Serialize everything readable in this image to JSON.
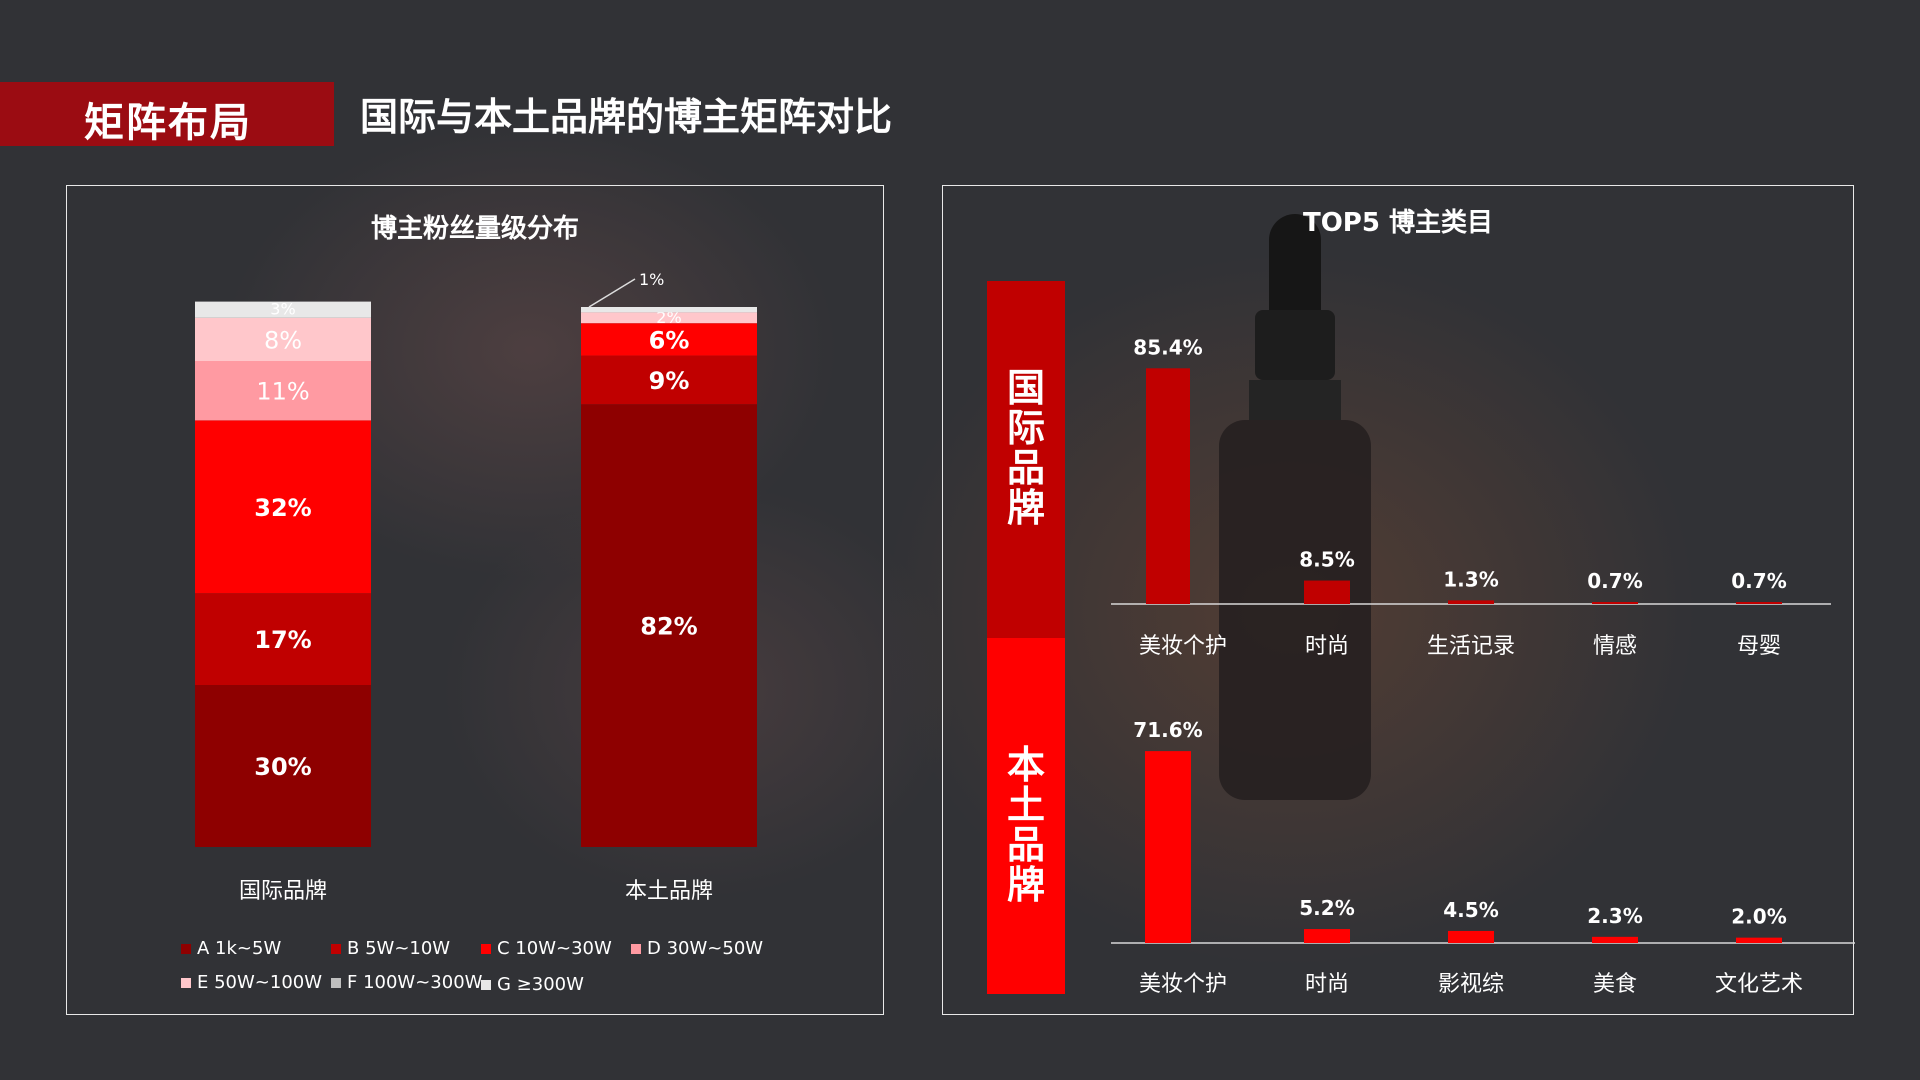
{
  "header": {
    "badge_label": "矩阵布局",
    "title": "国际与本土品牌的博主矩阵对比"
  },
  "left_panel": {
    "title": "博主粉丝量级分布"
  },
  "right_panel": {
    "title": "TOP5 博主类目"
  },
  "colors": {
    "A": "#8e0000",
    "B": "#c00000",
    "C": "#ff0000",
    "D": "#ff9aa2",
    "E": "#ffc7cb",
    "F": "#bfbfbf",
    "G": "#e8e8e8",
    "intl_band": "#c00000",
    "local_band": "#ff0000"
  },
  "chart_data": [
    {
      "type": "bar",
      "stacked": true,
      "title": "博主粉丝量级分布",
      "categories": [
        "国际品牌",
        "本土品牌"
      ],
      "ylim": [
        0,
        100
      ],
      "series": [
        {
          "name": "A 1k~5W",
          "key": "A",
          "values": [
            30,
            82
          ],
          "labels": [
            "30%",
            "82%"
          ]
        },
        {
          "name": "B 5W~10W",
          "key": "B",
          "values": [
            17,
            9
          ],
          "labels": [
            "17%",
            "9%"
          ]
        },
        {
          "name": "C 10W~30W",
          "key": "C",
          "values": [
            32,
            6
          ],
          "labels": [
            "32%",
            "6%"
          ]
        },
        {
          "name": "D 30W~50W",
          "key": "D",
          "values": [
            11,
            0
          ],
          "labels": [
            "11%",
            ""
          ]
        },
        {
          "name": "E 50W~100W",
          "key": "E",
          "values": [
            8,
            2
          ],
          "labels": [
            "8%",
            "2%"
          ]
        },
        {
          "name": "F 100W~300W",
          "key": "F",
          "values": [
            0,
            0
          ],
          "labels": [
            "",
            ""
          ]
        },
        {
          "name": "G ≥300W",
          "key": "G",
          "values": [
            3,
            1
          ],
          "labels": [
            "3%",
            "1%"
          ]
        }
      ],
      "legend_position": "bottom"
    },
    {
      "type": "bar",
      "group_label": "国际品牌",
      "title": "TOP5 博主类目",
      "categories": [
        "美妆个护",
        "时尚",
        "生活记录",
        "情感",
        "母婴"
      ],
      "values": [
        85.4,
        8.5,
        1.3,
        0.7,
        0.7
      ],
      "labels": [
        "85.4%",
        "8.5%",
        "1.3%",
        "0.7%",
        "0.7%"
      ],
      "ylim": [
        0,
        100
      ]
    },
    {
      "type": "bar",
      "group_label": "本土品牌",
      "title": "TOP5 博主类目",
      "categories": [
        "美妆个护",
        "时尚",
        "影视综",
        "美食",
        "文化艺术"
      ],
      "values": [
        71.6,
        5.2,
        4.5,
        2.3,
        2.0
      ],
      "labels": [
        "71.6%",
        "5.2%",
        "4.5%",
        "2.3%",
        "2.0%"
      ],
      "ylim": [
        0,
        100
      ]
    }
  ]
}
